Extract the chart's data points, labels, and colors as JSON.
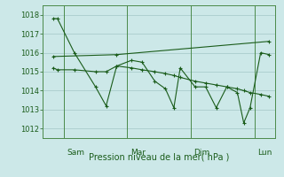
{
  "bg_color": "#cce8e8",
  "grid_color": "#aacccc",
  "line_color": "#1a5c1a",
  "spine_color": "#4a8a4a",
  "title": "Pression niveau de la mer( hPa )",
  "ylim": [
    1011.5,
    1018.5
  ],
  "yticks": [
    1012,
    1013,
    1014,
    1015,
    1016,
    1017,
    1018
  ],
  "day_labels": [
    "Sam",
    "Mar",
    "Dim",
    "Lun"
  ],
  "day_positions": [
    1,
    4,
    7,
    10
  ],
  "xlim": [
    0,
    11
  ],
  "series1_x": [
    0.5,
    0.7,
    1.5,
    2.5,
    3.0,
    3.5,
    4.2,
    4.7,
    5.3,
    5.8,
    6.2,
    6.5,
    7.2,
    7.7,
    8.2,
    8.7,
    9.2,
    9.5,
    9.8,
    10.3,
    10.7
  ],
  "series1_y": [
    1017.8,
    1017.8,
    1016.0,
    1014.2,
    1013.2,
    1015.3,
    1015.6,
    1015.5,
    1014.5,
    1014.1,
    1013.1,
    1015.2,
    1014.2,
    1014.2,
    1013.1,
    1014.2,
    1013.9,
    1012.3,
    1013.1,
    1016.0,
    1015.9
  ],
  "series2_x": [
    0.5,
    0.7,
    1.5,
    2.5,
    3.0,
    3.5,
    4.2,
    4.7,
    5.3,
    5.8,
    6.2,
    6.5,
    7.2,
    7.7,
    8.2,
    8.7,
    9.2,
    9.5,
    9.8,
    10.3,
    10.7
  ],
  "series2_y": [
    1015.2,
    1015.1,
    1015.1,
    1015.0,
    1015.0,
    1015.3,
    1015.2,
    1015.1,
    1015.0,
    1014.9,
    1014.8,
    1014.7,
    1014.5,
    1014.4,
    1014.3,
    1014.2,
    1014.1,
    1014.0,
    1013.9,
    1013.8,
    1013.7
  ],
  "series3_x": [
    0.5,
    3.5,
    10.7
  ],
  "series3_y": [
    1015.8,
    1015.9,
    1016.6
  ],
  "figsize": [
    3.2,
    2.0
  ],
  "dpi": 100
}
